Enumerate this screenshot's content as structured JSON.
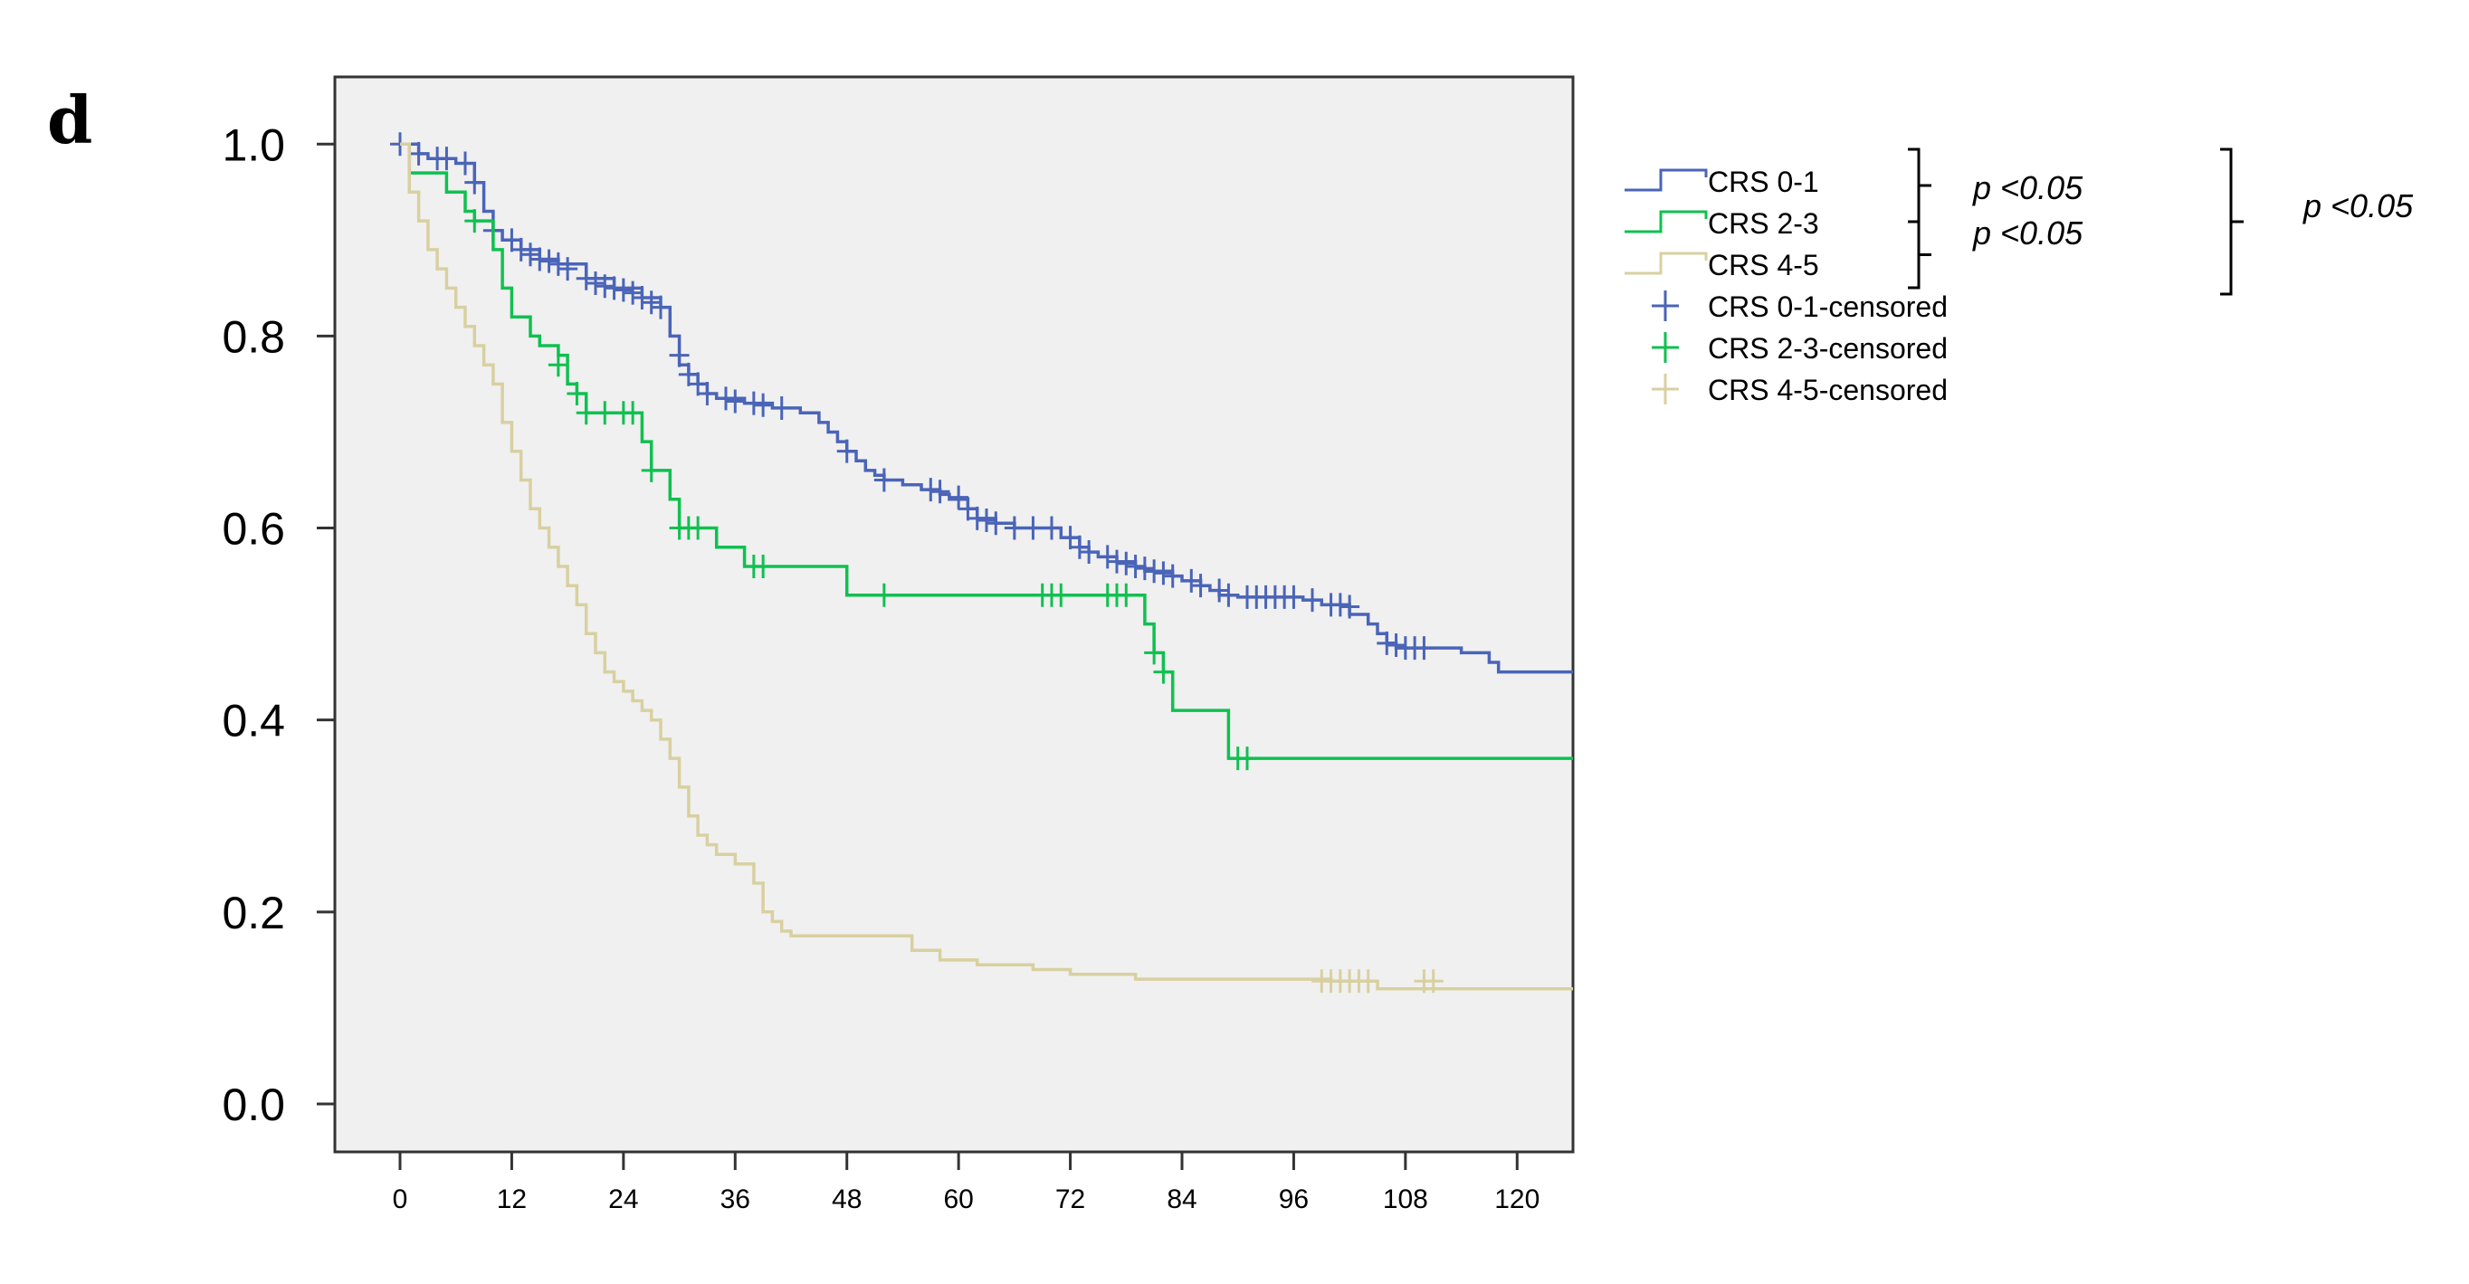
{
  "panel_label": "d",
  "colors": {
    "crs01": "#4a64b8",
    "crs23": "#10c050",
    "crs45": "#d8d0a0",
    "plot_bg": "#f0f0f0",
    "axis": "#333333"
  },
  "legend": {
    "items": [
      {
        "label": "CRS 0-1",
        "series": "crs01",
        "kind": "line"
      },
      {
        "label": "CRS 2-3",
        "series": "crs23",
        "kind": "line"
      },
      {
        "label": "CRS 4-5",
        "series": "crs45",
        "kind": "line"
      },
      {
        "label": "CRS 0-1-censored",
        "series": "crs01",
        "kind": "censor"
      },
      {
        "label": "CRS 2-3-censored",
        "series": "crs23",
        "kind": "censor"
      },
      {
        "label": "CRS 4-5-censored",
        "series": "crs45",
        "kind": "censor"
      }
    ]
  },
  "pvalues": {
    "pair_01_23": "p <0.05",
    "pair_23_45": "p <0.05",
    "pair_01_45": "p <0.05"
  },
  "chart_data": {
    "type": "line",
    "subtype": "kaplan-meier",
    "title": "",
    "xlabel": "",
    "ylabel": "",
    "xlim": [
      -7,
      126
    ],
    "ylim": [
      -0.05,
      1.07
    ],
    "x_ticks": [
      0,
      12,
      24,
      36,
      48,
      60,
      72,
      84,
      96,
      108,
      120
    ],
    "y_ticks": [
      0.0,
      0.2,
      0.4,
      0.6,
      0.8,
      1.0
    ],
    "y_tick_labels": [
      "0.0",
      "0.2",
      "0.4",
      "0.6",
      "0.8",
      "1.0"
    ],
    "grid": false,
    "legend_position": "right-outside",
    "series": [
      {
        "name": "CRS 0-1",
        "color_key": "crs01",
        "steps": [
          [
            0,
            1.0
          ],
          [
            2,
            0.99
          ],
          [
            3,
            0.985
          ],
          [
            6,
            0.98
          ],
          [
            8,
            0.96
          ],
          [
            9,
            0.93
          ],
          [
            10,
            0.91
          ],
          [
            11,
            0.9
          ],
          [
            13,
            0.89
          ],
          [
            15,
            0.88
          ],
          [
            17,
            0.875
          ],
          [
            20,
            0.86
          ],
          [
            23,
            0.85
          ],
          [
            26,
            0.84
          ],
          [
            28,
            0.83
          ],
          [
            29,
            0.8
          ],
          [
            30,
            0.77
          ],
          [
            31,
            0.76
          ],
          [
            32,
            0.75
          ],
          [
            33,
            0.74
          ],
          [
            34,
            0.735
          ],
          [
            37,
            0.73
          ],
          [
            40,
            0.725
          ],
          [
            43,
            0.72
          ],
          [
            45,
            0.71
          ],
          [
            46,
            0.7
          ],
          [
            47,
            0.69
          ],
          [
            48,
            0.68
          ],
          [
            49,
            0.67
          ],
          [
            50,
            0.66
          ],
          [
            51,
            0.655
          ],
          [
            52,
            0.65
          ],
          [
            54,
            0.645
          ],
          [
            56,
            0.64
          ],
          [
            58,
            0.635
          ],
          [
            59,
            0.63
          ],
          [
            61,
            0.62
          ],
          [
            62,
            0.61
          ],
          [
            64,
            0.605
          ],
          [
            66,
            0.6
          ],
          [
            71,
            0.59
          ],
          [
            73,
            0.58
          ],
          [
            74,
            0.575
          ],
          [
            75,
            0.57
          ],
          [
            77,
            0.565
          ],
          [
            79,
            0.56
          ],
          [
            80,
            0.555
          ],
          [
            83,
            0.55
          ],
          [
            84,
            0.545
          ],
          [
            86,
            0.54
          ],
          [
            87,
            0.535
          ],
          [
            88,
            0.53
          ],
          [
            90,
            0.528
          ],
          [
            97,
            0.525
          ],
          [
            99,
            0.52
          ],
          [
            102,
            0.51
          ],
          [
            104,
            0.5
          ],
          [
            105,
            0.49
          ],
          [
            106,
            0.48
          ],
          [
            107,
            0.475
          ],
          [
            114,
            0.47
          ],
          [
            117,
            0.46
          ],
          [
            118,
            0.45
          ],
          [
            126,
            0.45
          ]
        ],
        "censored": [
          [
            0,
            1.0
          ],
          [
            2,
            0.99
          ],
          [
            4,
            0.985
          ],
          [
            5,
            0.985
          ],
          [
            7,
            0.98
          ],
          [
            8,
            0.96
          ],
          [
            10,
            0.91
          ],
          [
            12,
            0.9
          ],
          [
            13,
            0.89
          ],
          [
            14,
            0.885
          ],
          [
            15,
            0.88
          ],
          [
            16,
            0.878
          ],
          [
            17,
            0.875
          ],
          [
            18,
            0.87
          ],
          [
            20,
            0.86
          ],
          [
            21,
            0.855
          ],
          [
            22,
            0.852
          ],
          [
            23,
            0.85
          ],
          [
            24,
            0.848
          ],
          [
            25,
            0.845
          ],
          [
            26,
            0.84
          ],
          [
            27,
            0.835
          ],
          [
            28,
            0.83
          ],
          [
            30,
            0.78
          ],
          [
            31,
            0.76
          ],
          [
            32,
            0.75
          ],
          [
            33,
            0.74
          ],
          [
            35,
            0.735
          ],
          [
            36,
            0.732
          ],
          [
            38,
            0.73
          ],
          [
            39,
            0.728
          ],
          [
            41,
            0.725
          ],
          [
            48,
            0.68
          ],
          [
            52,
            0.65
          ],
          [
            57,
            0.64
          ],
          [
            58,
            0.638
          ],
          [
            60,
            0.632
          ],
          [
            61,
            0.62
          ],
          [
            62,
            0.61
          ],
          [
            63,
            0.608
          ],
          [
            64,
            0.605
          ],
          [
            66,
            0.6
          ],
          [
            68,
            0.6
          ],
          [
            70,
            0.6
          ],
          [
            72,
            0.59
          ],
          [
            73,
            0.58
          ],
          [
            74,
            0.575
          ],
          [
            76,
            0.57
          ],
          [
            77,
            0.565
          ],
          [
            78,
            0.563
          ],
          [
            79,
            0.56
          ],
          [
            80,
            0.558
          ],
          [
            81,
            0.555
          ],
          [
            82,
            0.553
          ],
          [
            83,
            0.55
          ],
          [
            85,
            0.545
          ],
          [
            86,
            0.54
          ],
          [
            88,
            0.535
          ],
          [
            89,
            0.53
          ],
          [
            91,
            0.528
          ],
          [
            92,
            0.528
          ],
          [
            93,
            0.528
          ],
          [
            94,
            0.528
          ],
          [
            95,
            0.528
          ],
          [
            96,
            0.528
          ],
          [
            98,
            0.525
          ],
          [
            100,
            0.52
          ],
          [
            101,
            0.52
          ],
          [
            102,
            0.518
          ],
          [
            106,
            0.48
          ],
          [
            107,
            0.478
          ],
          [
            108,
            0.475
          ],
          [
            109,
            0.475
          ],
          [
            110,
            0.475
          ]
        ]
      },
      {
        "name": "CRS 2-3",
        "color_key": "crs23",
        "steps": [
          [
            0,
            1.0
          ],
          [
            1,
            0.97
          ],
          [
            5,
            0.95
          ],
          [
            7,
            0.93
          ],
          [
            8,
            0.92
          ],
          [
            10,
            0.89
          ],
          [
            11,
            0.85
          ],
          [
            12,
            0.82
          ],
          [
            14,
            0.8
          ],
          [
            15,
            0.79
          ],
          [
            17,
            0.78
          ],
          [
            18,
            0.75
          ],
          [
            19,
            0.74
          ],
          [
            20,
            0.72
          ],
          [
            26,
            0.69
          ],
          [
            27,
            0.66
          ],
          [
            29,
            0.63
          ],
          [
            30,
            0.6
          ],
          [
            34,
            0.58
          ],
          [
            37,
            0.56
          ],
          [
            48,
            0.53
          ],
          [
            80,
            0.5
          ],
          [
            81,
            0.47
          ],
          [
            82,
            0.45
          ],
          [
            83,
            0.41
          ],
          [
            89,
            0.36
          ],
          [
            126,
            0.36
          ]
        ],
        "censored": [
          [
            8,
            0.92
          ],
          [
            17,
            0.77
          ],
          [
            19,
            0.74
          ],
          [
            20,
            0.72
          ],
          [
            22,
            0.72
          ],
          [
            24,
            0.72
          ],
          [
            25,
            0.72
          ],
          [
            27,
            0.66
          ],
          [
            30,
            0.6
          ],
          [
            31,
            0.6
          ],
          [
            32,
            0.6
          ],
          [
            38,
            0.56
          ],
          [
            39,
            0.56
          ],
          [
            52,
            0.53
          ],
          [
            69,
            0.53
          ],
          [
            70,
            0.53
          ],
          [
            71,
            0.53
          ],
          [
            76,
            0.53
          ],
          [
            77,
            0.53
          ],
          [
            78,
            0.53
          ],
          [
            81,
            0.47
          ],
          [
            82,
            0.45
          ],
          [
            90,
            0.36
          ],
          [
            91,
            0.36
          ]
        ]
      },
      {
        "name": "CRS 4-5",
        "color_key": "crs45",
        "steps": [
          [
            0,
            1.0
          ],
          [
            1,
            0.95
          ],
          [
            2,
            0.92
          ],
          [
            3,
            0.89
          ],
          [
            4,
            0.87
          ],
          [
            5,
            0.85
          ],
          [
            6,
            0.83
          ],
          [
            7,
            0.81
          ],
          [
            8,
            0.79
          ],
          [
            9,
            0.77
          ],
          [
            10,
            0.75
          ],
          [
            11,
            0.71
          ],
          [
            12,
            0.68
          ],
          [
            13,
            0.65
          ],
          [
            14,
            0.62
          ],
          [
            15,
            0.6
          ],
          [
            16,
            0.58
          ],
          [
            17,
            0.56
          ],
          [
            18,
            0.54
          ],
          [
            19,
            0.52
          ],
          [
            20,
            0.49
          ],
          [
            21,
            0.47
          ],
          [
            22,
            0.45
          ],
          [
            23,
            0.44
          ],
          [
            24,
            0.43
          ],
          [
            25,
            0.42
          ],
          [
            26,
            0.41
          ],
          [
            27,
            0.4
          ],
          [
            28,
            0.38
          ],
          [
            29,
            0.36
          ],
          [
            30,
            0.33
          ],
          [
            31,
            0.3
          ],
          [
            32,
            0.28
          ],
          [
            33,
            0.27
          ],
          [
            34,
            0.26
          ],
          [
            36,
            0.25
          ],
          [
            38,
            0.23
          ],
          [
            39,
            0.2
          ],
          [
            40,
            0.19
          ],
          [
            41,
            0.18
          ],
          [
            42,
            0.175
          ],
          [
            55,
            0.16
          ],
          [
            58,
            0.15
          ],
          [
            62,
            0.145
          ],
          [
            68,
            0.14
          ],
          [
            72,
            0.135
          ],
          [
            79,
            0.13
          ],
          [
            100,
            0.128
          ],
          [
            105,
            0.12
          ],
          [
            126,
            0.12
          ]
        ],
        "censored": [
          [
            99,
            0.128
          ],
          [
            100,
            0.128
          ],
          [
            101,
            0.128
          ],
          [
            102,
            0.128
          ],
          [
            103,
            0.128
          ],
          [
            104,
            0.128
          ],
          [
            110,
            0.128
          ],
          [
            111,
            0.128
          ]
        ]
      }
    ]
  }
}
